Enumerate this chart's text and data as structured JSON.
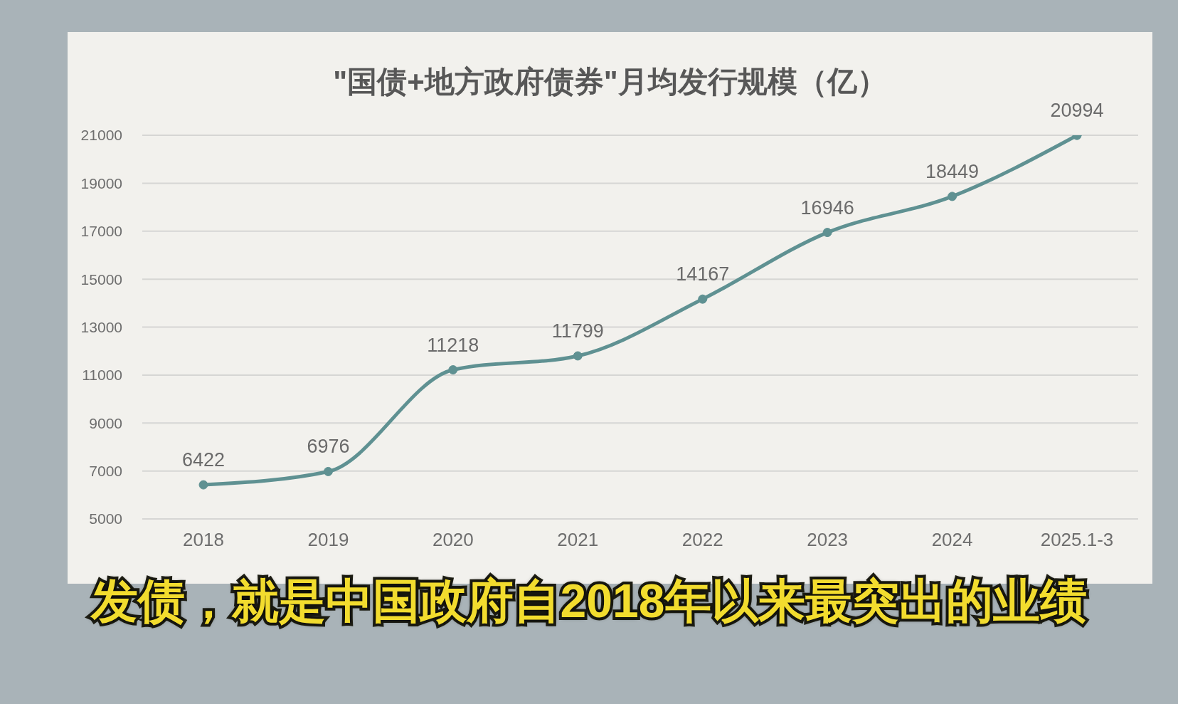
{
  "chart_data": {
    "type": "line",
    "title": "\"国债+地方政府债券\"月均发行规模（亿）",
    "categories": [
      "2018",
      "2019",
      "2020",
      "2021",
      "2022",
      "2023",
      "2024",
      "2025.1-3"
    ],
    "series": [
      {
        "values": [
          6422,
          6976,
          11218,
          11799,
          14167,
          16946,
          18449,
          20994
        ],
        "color": "#5f9192"
      }
    ],
    "ylim": [
      5000,
      21000
    ],
    "yticks": [
      5000,
      7000,
      9000,
      11000,
      13000,
      15000,
      17000,
      19000,
      21000
    ],
    "grid": "y",
    "marker": "circle",
    "line_style": "solid",
    "data_labels": true,
    "annotations": [
      "发债，就是中国政府自2018年以来最突出的业绩"
    ]
  }
}
